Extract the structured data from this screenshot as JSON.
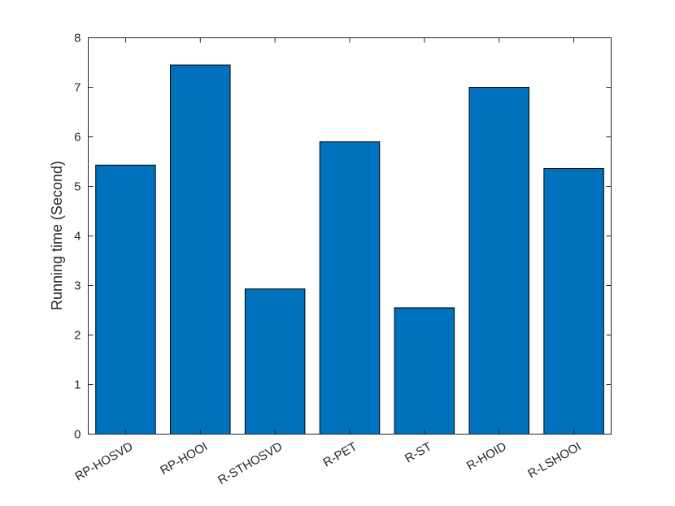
{
  "chart_data": {
    "type": "bar",
    "categories": [
      "RP-HOSVD",
      "RP-HOOI",
      "R-STHOSVD",
      "R-PET",
      "R-ST",
      "R-HOID",
      "R-LSHOOI"
    ],
    "values": [
      5.43,
      7.45,
      2.93,
      5.9,
      2.55,
      7.0,
      5.36
    ],
    "title": "",
    "xlabel": "",
    "ylabel": "Running time (Second)",
    "ylim": [
      0,
      8
    ],
    "yticks": [
      0,
      1,
      2,
      3,
      4,
      5,
      6,
      7,
      8
    ],
    "grid": false,
    "bar_color": "#0072bd",
    "box": true
  }
}
